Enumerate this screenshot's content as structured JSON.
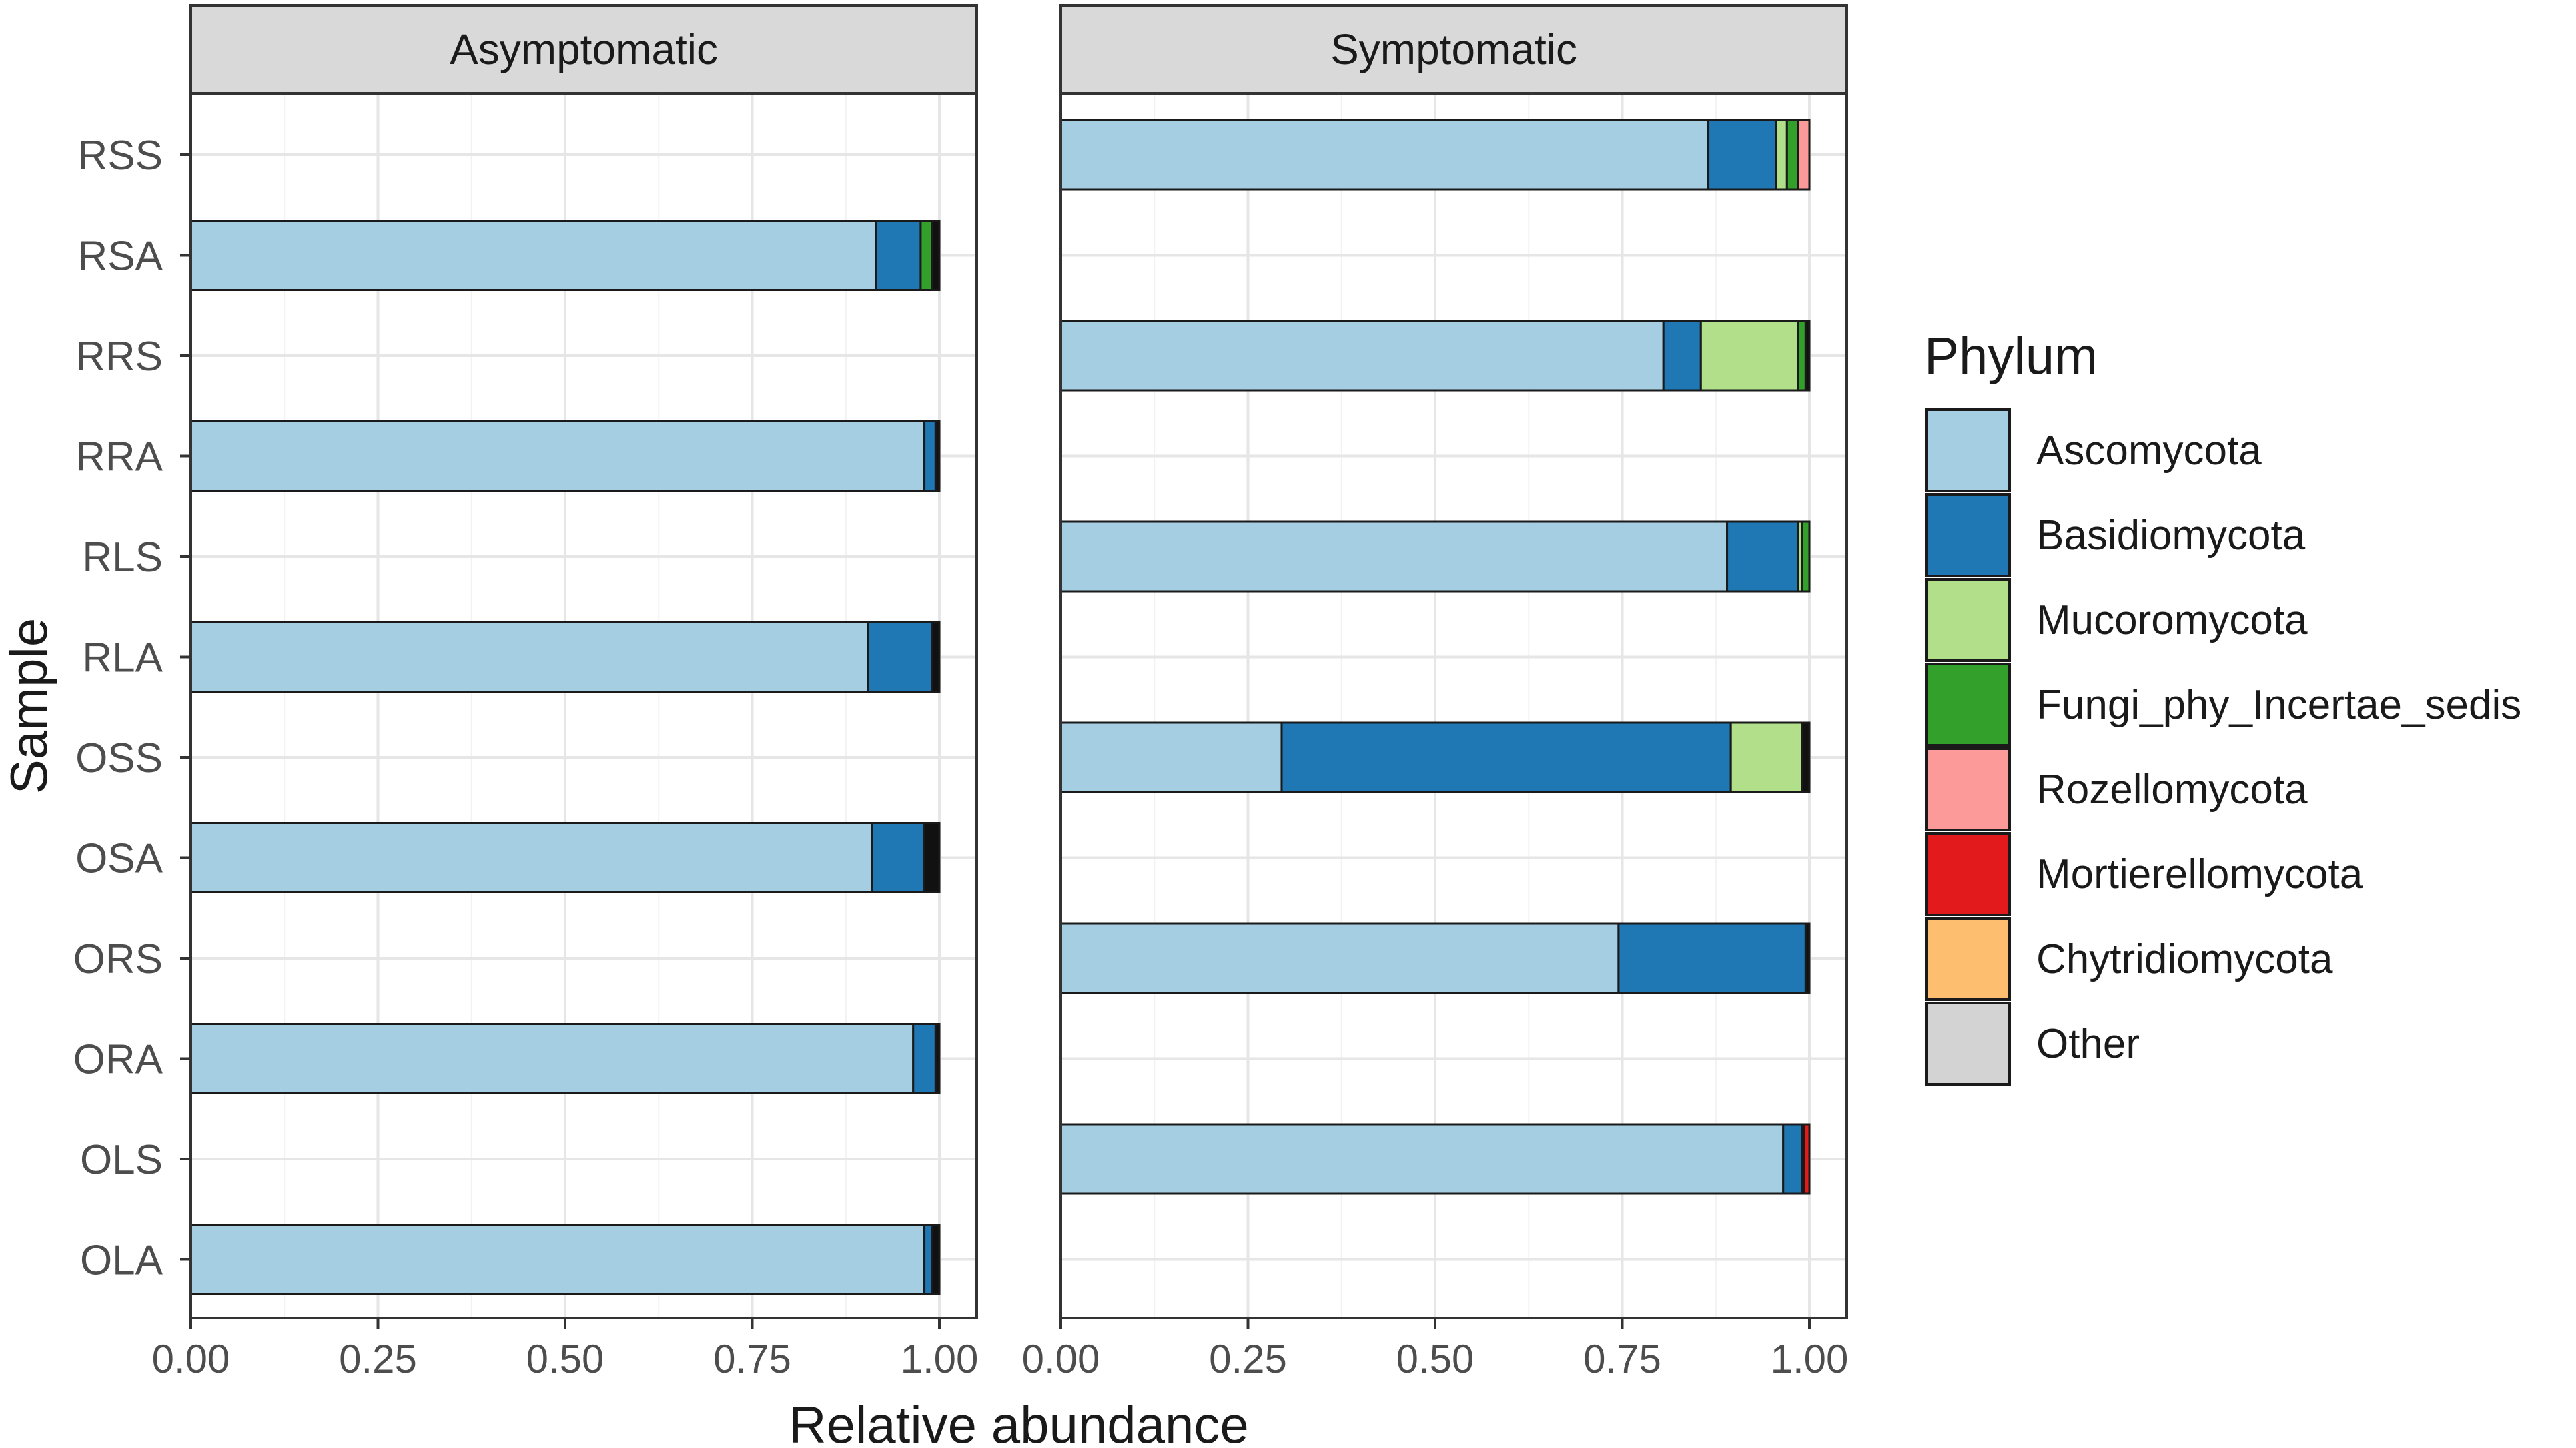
{
  "chart_data": {
    "type": "bar",
    "orientation": "horizontal",
    "stacked": true,
    "xlabel": "Relative abundance",
    "ylabel": "Sample",
    "xlim": [
      0,
      1
    ],
    "x_ticks": [
      "0.00",
      "0.25",
      "0.50",
      "0.75",
      "1.00"
    ],
    "x_tick_values": [
      0,
      0.25,
      0.5,
      0.75,
      1
    ],
    "grid": true,
    "legend": {
      "title": "Phylum",
      "position": "right",
      "entries": [
        {
          "name": "Ascomycota",
          "color": "#a6cee3"
        },
        {
          "name": "Basidiomycota",
          "color": "#1f78b4"
        },
        {
          "name": "Mucoromycota",
          "color": "#b2df8a"
        },
        {
          "name": "Fungi_phy_Incertae_sedis",
          "color": "#33a02c"
        },
        {
          "name": "Rozellomycota",
          "color": "#fb9a99"
        },
        {
          "name": "Mortierellomycota",
          "color": "#e31a1c"
        },
        {
          "name": "Chytridiomycota",
          "color": "#fdbf6f"
        },
        {
          "name": "Other",
          "color": "#d3d3d3"
        },
        {
          "name": "",
          "color": "#111111"
        }
      ]
    },
    "categories": [
      "RSS",
      "RSA",
      "RRS",
      "RRA",
      "RLS",
      "RLA",
      "OSS",
      "OSA",
      "ORS",
      "ORA",
      "OLS",
      "OLA"
    ],
    "panels": [
      {
        "title": "Asymptomatic",
        "bars": [
          {
            "sample": "RSA",
            "segments": [
              0.915,
              0.06,
              0.015,
              0.01
            ]
          },
          {
            "sample": "RRA",
            "segments": [
              0.98,
              0.015,
              0,
              0.005
            ]
          },
          {
            "sample": "RLA",
            "segments": [
              0.905,
              0.085,
              0,
              0.01
            ]
          },
          {
            "sample": "OSA",
            "segments": [
              0.91,
              0.07,
              0,
              0.02
            ]
          },
          {
            "sample": "ORA",
            "segments": [
              0.965,
              0.03,
              0,
              0.005
            ]
          },
          {
            "sample": "OLA",
            "segments": [
              0.98,
              0.01,
              0,
              0.01
            ]
          }
        ]
      },
      {
        "title": "Symptomatic",
        "bars": [
          {
            "sample": "RSS",
            "segments": [
              0.865,
              0.09,
              0.015,
              0.015,
              0.015
            ]
          },
          {
            "sample": "RRS",
            "segments": [
              0.805,
              0.05,
              0.13,
              0.01,
              0.005
            ]
          },
          {
            "sample": "RLS",
            "segments": [
              0.89,
              0.095,
              0.005,
              0.01
            ]
          },
          {
            "sample": "OSS",
            "segments": [
              0.295,
              0.6,
              0.095,
              0.01
            ]
          },
          {
            "sample": "ORS",
            "segments": [
              0.745,
              0.25,
              0.005
            ]
          },
          {
            "sample": "OLS",
            "segments": [
              0.965,
              0.025,
              0.003,
              0.007
            ]
          }
        ]
      }
    ],
    "segment_order": [
      "Ascomycota",
      "Basidiomycota",
      "Mucoromycota",
      "Fungi_phy_Incertae_sedis",
      "Rozellomycota",
      "Mortierellomycota",
      "Chytridiomycota",
      "Other"
    ],
    "segment_color_map": {
      "Asymptomatic": {
        "RSA": [
          "#a6cee3",
          "#1f78b4",
          "#33a02c",
          "#111111"
        ],
        "RRA": [
          "#a6cee3",
          "#1f78b4",
          "#b2df8a",
          "#111111"
        ],
        "RLA": [
          "#a6cee3",
          "#1f78b4",
          "#b2df8a",
          "#111111"
        ],
        "OSA": [
          "#a6cee3",
          "#1f78b4",
          "#b2df8a",
          "#111111"
        ],
        "ORA": [
          "#a6cee3",
          "#1f78b4",
          "#b2df8a",
          "#111111"
        ],
        "OLA": [
          "#a6cee3",
          "#1f78b4",
          "#b2df8a",
          "#111111"
        ]
      },
      "Symptomatic": {
        "RSS": [
          "#a6cee3",
          "#1f78b4",
          "#b2df8a",
          "#33a02c",
          "#fb9a99"
        ],
        "RRS": [
          "#a6cee3",
          "#1f78b4",
          "#b2df8a",
          "#33a02c",
          "#111111"
        ],
        "RLS": [
          "#a6cee3",
          "#1f78b4",
          "#b2df8a",
          "#33a02c"
        ],
        "OSS": [
          "#a6cee3",
          "#1f78b4",
          "#b2df8a",
          "#111111"
        ],
        "ORS": [
          "#a6cee3",
          "#1f78b4",
          "#111111"
        ],
        "OLS": [
          "#a6cee3",
          "#1f78b4",
          "#fb9a99",
          "#e31a1c"
        ]
      }
    }
  }
}
